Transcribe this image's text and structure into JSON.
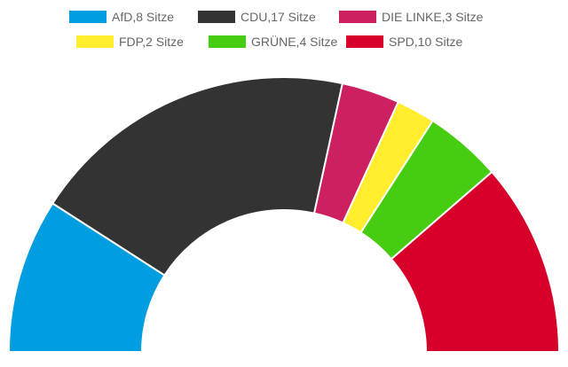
{
  "chart_data": {
    "type": "pie",
    "variant": "semi-donut",
    "legend_position": "top",
    "categories": [
      "AfD",
      "CDU",
      "DIE LINKE",
      "FDP",
      "GRÜNE",
      "SPD"
    ],
    "values": [
      8,
      17,
      3,
      2,
      4,
      10
    ],
    "colors": [
      "#009ee0",
      "#333333",
      "#cc2060",
      "#ffed2e",
      "#46cc10",
      "#d7002a"
    ],
    "legend": [
      {
        "label": "AfD,8 Sitze",
        "color": "#009ee0"
      },
      {
        "label": "CDU,17 Sitze",
        "color": "#333333"
      },
      {
        "label": "DIE LINKE,3 Sitze",
        "color": "#cc2060"
      },
      {
        "label": "FDP,2 Sitze",
        "color": "#ffed2e"
      },
      {
        "label": "GRÜNE,4 Sitze",
        "color": "#46cc10"
      },
      {
        "label": "SPD,10 Sitze",
        "color": "#d7002a"
      }
    ]
  }
}
